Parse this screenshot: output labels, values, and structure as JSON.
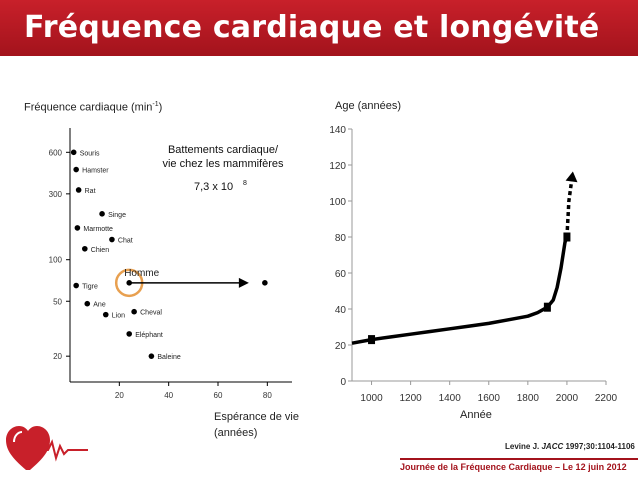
{
  "title": "Fréquence cardiaque et longévité",
  "left_ylabel_main": "Fréquence cardiaque (min",
  "left_ylabel_sup": "-1",
  "left_ylabel_end": ")",
  "left_xlabel_line1": "Espérance de vie",
  "left_xlabel_line2": "(années)",
  "right_ylabel": "Age (années)",
  "right_xlabel": "Année",
  "reference_author": "Levine J. ",
  "reference_journal": "JACC",
  "reference_rest": " 1997;30:1104-1106",
  "footer": "Journée de la Fréquence Cardiaque – Le 12 juin 2012",
  "colors": {
    "brand_red": "#b51a22",
    "homme_circle": "#e8a050"
  },
  "chart_data": [
    {
      "type": "scatter",
      "y_scale": "log",
      "x_ticks": [
        "20",
        "40",
        "60",
        "80"
      ],
      "y_ticks": [
        "20",
        "50",
        "100",
        "300",
        "600"
      ],
      "annotation_title_line1": "Battements cardiaque/",
      "annotation_title_line2": "vie chez les mammifères",
      "annotation_value": "7,3 x 10",
      "annotation_exponent": "8",
      "points": [
        {
          "label": "Souris",
          "x": 1.5,
          "y": 600
        },
        {
          "label": "Hamster",
          "x": 2.5,
          "y": 450
        },
        {
          "label": "Rat",
          "x": 3.5,
          "y": 320
        },
        {
          "label": "Singe",
          "x": 13,
          "y": 215
        },
        {
          "label": "Marmotte",
          "x": 3,
          "y": 170
        },
        {
          "label": "Chat",
          "x": 17,
          "y": 140
        },
        {
          "label": "Chien",
          "x": 6,
          "y": 120
        },
        {
          "label": "Homme",
          "x": 24,
          "y": 68
        },
        {
          "label": "Tigre",
          "x": 2.5,
          "y": 65
        },
        {
          "label": "Ane",
          "x": 7,
          "y": 48
        },
        {
          "label": "Lion",
          "x": 14.5,
          "y": 40
        },
        {
          "label": "Cheval",
          "x": 26,
          "y": 42
        },
        {
          "label": "Eléphant",
          "x": 24,
          "y": 29
        },
        {
          "label": "Baleine",
          "x": 33,
          "y": 20
        },
        {
          "label": "",
          "x": 79,
          "y": 68
        }
      ],
      "highlight": "Homme"
    },
    {
      "type": "line",
      "x_ticks": [
        "1000",
        "1200",
        "1400",
        "1600",
        "1800",
        "2000",
        "2200"
      ],
      "y_ticks": [
        "0",
        "20",
        "40",
        "60",
        "80",
        "100",
        "120",
        "140"
      ],
      "xlim": [
        900,
        2200
      ],
      "ylim": [
        0,
        140
      ],
      "x": [
        900,
        1000,
        1100,
        1200,
        1300,
        1400,
        1500,
        1600,
        1700,
        1800,
        1850,
        1900,
        1930,
        1950,
        1970,
        1990,
        2000
      ],
      "y": [
        21,
        23,
        24.5,
        26,
        27.5,
        29,
        30.5,
        32,
        34,
        36,
        38,
        41,
        45,
        52,
        63,
        77,
        80
      ],
      "markers": [
        {
          "x": 1000,
          "y": 23
        },
        {
          "x": 1900,
          "y": 41
        },
        {
          "x": 2000,
          "y": 80
        }
      ],
      "projection": {
        "x": [
          2000,
          2010,
          2025
        ],
        "y": [
          80,
          100,
          112
        ]
      }
    }
  ]
}
